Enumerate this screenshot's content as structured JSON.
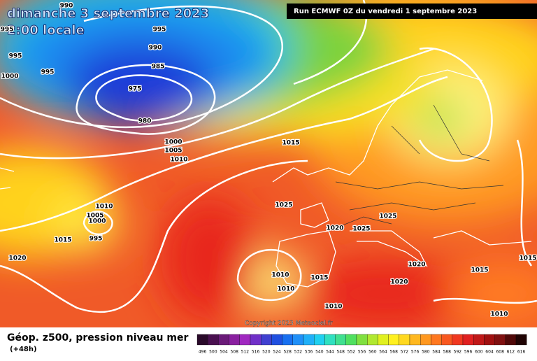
{
  "header": {
    "title": "dimanche 3 septembre 2023",
    "subtitle": "2:00 locale",
    "run": "Run ECMWF 0Z du vendredi 1 septembre 2023"
  },
  "map": {
    "isobar_labels": [
      990,
      995,
      990,
      985,
      975,
      980,
      1000,
      1005,
      1010,
      995,
      995,
      1000,
      1015,
      1025,
      1010,
      1005,
      1000,
      995,
      1015,
      1020,
      1020,
      1025,
      1025,
      1020,
      1020,
      1015,
      1010,
      1010,
      1010,
      1010,
      1015,
      1015,
      995
    ],
    "copyright": "Copyright 2023 Meteociel.fr"
  },
  "footer": {
    "title": "Géop. z500, pression niveau mer",
    "lead": "(+48h)",
    "scale": [
      496,
      500,
      504,
      508,
      512,
      516,
      520,
      524,
      528,
      532,
      536,
      540,
      544,
      548,
      552,
      556,
      560,
      564,
      568,
      572,
      576,
      580,
      584,
      588,
      592,
      596,
      600,
      604,
      608,
      612,
      616
    ]
  }
}
